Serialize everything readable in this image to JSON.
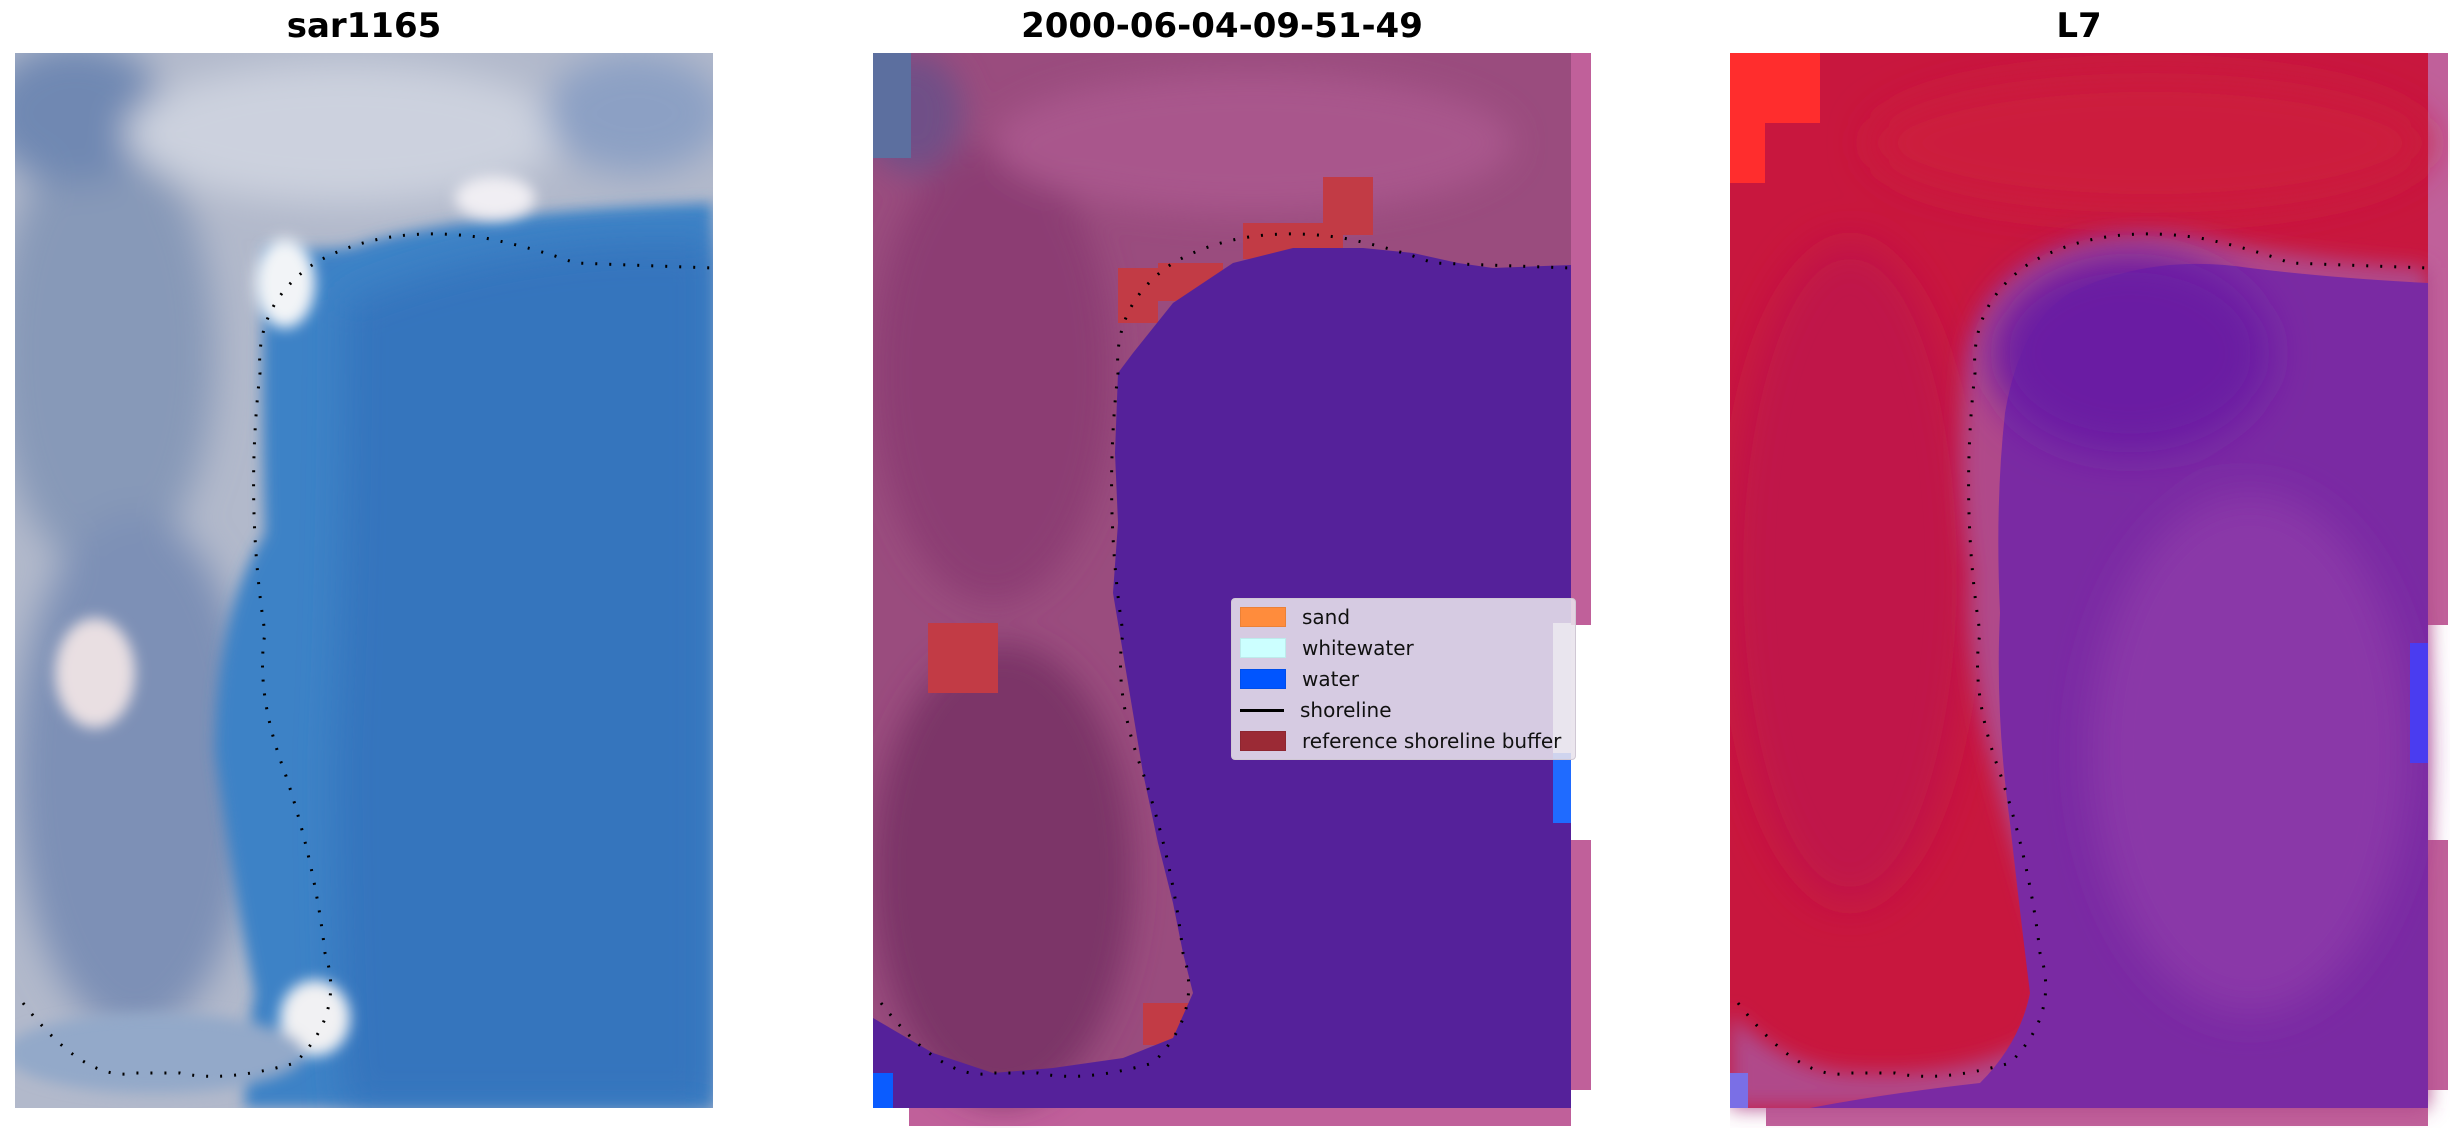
{
  "panels": [
    {
      "title": "sar1165"
    },
    {
      "title": "2000-06-04-09-51-49"
    },
    {
      "title": "L7"
    }
  ],
  "legend": {
    "items": [
      {
        "label": "sand",
        "color": "#ff8c3c",
        "kind": "patch"
      },
      {
        "label": "whitewater",
        "color": "#ccffff",
        "kind": "patch"
      },
      {
        "label": "water",
        "color": "#0055ff",
        "kind": "patch"
      },
      {
        "label": "shoreline",
        "color": "#000000",
        "kind": "line"
      },
      {
        "label": "reference shoreline buffer",
        "color": "#9b2a35",
        "kind": "patch"
      }
    ]
  },
  "colors": {
    "rgb_land": "#b9bfd0",
    "rgb_sea": "#3a7fc1",
    "classified_land": "#9a4c7e",
    "classified_water": "#55219a",
    "classified_buffer": "#c23b45",
    "ndwi_land": "#c8173e",
    "ndwi_water": "#7a2aa3",
    "frame_strip": "#c0609a"
  }
}
